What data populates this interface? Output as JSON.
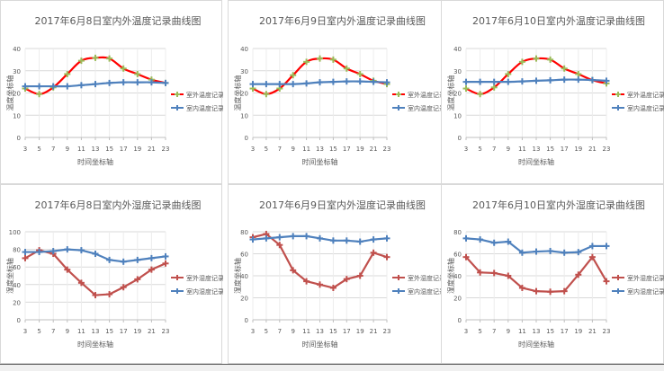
{
  "chart_data": [
    {
      "type": "line",
      "title": "2017年6月8日室内外温度记录曲线图",
      "xlabel": "时间坐标轴",
      "ylabel": "温度坐标轴",
      "x": [
        3,
        5,
        7,
        9,
        11,
        13,
        15,
        17,
        19,
        21,
        23
      ],
      "ylim": [
        0,
        40
      ],
      "yticks": [
        0,
        10,
        20,
        30,
        40
      ],
      "grid": true,
      "legend": "right",
      "smooth": true,
      "series": [
        {
          "name": "室外温度记录曲线",
          "color": "#ff0000",
          "marker_color": "#9bbb59",
          "values": [
            22,
            19.5,
            22.5,
            28.5,
            34.5,
            35.8,
            35.5,
            31,
            28.5,
            26,
            24.5
          ]
        },
        {
          "name": "室内温度记录曲线",
          "color": "#4f81bd",
          "marker_color": "#4f81bd",
          "values": [
            23,
            23,
            23,
            23,
            23.5,
            24,
            24.5,
            24.8,
            24.8,
            24.8,
            24.5
          ]
        }
      ]
    },
    {
      "type": "line",
      "title": "2017年6月9日室内外温度记录曲线图",
      "xlabel": "时间坐标轴",
      "ylabel": "温度坐标轴",
      "x": [
        3,
        5,
        7,
        9,
        11,
        13,
        15,
        17,
        19,
        21,
        23
      ],
      "ylim": [
        0,
        40
      ],
      "yticks": [
        0,
        10,
        20,
        30,
        40
      ],
      "grid": true,
      "legend": "right",
      "smooth": true,
      "series": [
        {
          "name": "室外温度记录曲线",
          "color": "#ff0000",
          "marker_color": "#9bbb59",
          "values": [
            22,
            19.5,
            22,
            28,
            34,
            35.5,
            35,
            31,
            28.5,
            25.5,
            24
          ]
        },
        {
          "name": "室内温度记录曲线",
          "color": "#4f81bd",
          "marker_color": "#4f81bd",
          "values": [
            24,
            24,
            24,
            24,
            24.3,
            24.8,
            25,
            25.2,
            25.2,
            25,
            24.8
          ]
        }
      ]
    },
    {
      "type": "line",
      "title": "2017年6月10日室内外温度记录曲线图",
      "xlabel": "时间坐标轴",
      "ylabel": "温度坐标轴",
      "x": [
        3,
        5,
        7,
        9,
        11,
        13,
        15,
        17,
        19,
        21,
        23
      ],
      "ylim": [
        0,
        40
      ],
      "yticks": [
        0,
        10,
        20,
        30,
        40
      ],
      "grid": true,
      "legend": "right",
      "smooth": true,
      "series": [
        {
          "name": "室外温度记录曲线",
          "color": "#ff0000",
          "marker_color": "#9bbb59",
          "values": [
            22,
            19.5,
            22.5,
            28.5,
            34,
            35.5,
            35,
            31,
            28.5,
            25.8,
            24.3
          ]
        },
        {
          "name": "室内温度记录曲线",
          "color": "#4f81bd",
          "marker_color": "#4f81bd",
          "values": [
            25,
            25,
            25,
            25,
            25.2,
            25.5,
            25.7,
            26,
            26,
            25.8,
            25.5
          ]
        }
      ]
    },
    {
      "type": "line",
      "title": "2017年6月8日室内外湿度记录曲线图",
      "xlabel": "时间坐标轴",
      "ylabel": "湿度坐标轴",
      "x": [
        3,
        5,
        7,
        9,
        11,
        13,
        15,
        17,
        19,
        21,
        23
      ],
      "ylim": [
        0,
        100
      ],
      "yticks": [
        0,
        20,
        40,
        60,
        80,
        100
      ],
      "grid": true,
      "legend": "right",
      "smooth": false,
      "series": [
        {
          "name": "室外湿度记录曲线",
          "color": "#c0504d",
          "marker_color": "#c0504d",
          "values": [
            70,
            79,
            75,
            57,
            42,
            28,
            29,
            37,
            46,
            57,
            64
          ]
        },
        {
          "name": "室内湿度记录曲线",
          "color": "#4f81bd",
          "marker_color": "#4f81bd",
          "values": [
            77,
            77,
            78,
            80,
            79,
            75,
            68,
            66,
            68,
            70,
            72
          ]
        }
      ]
    },
    {
      "type": "line",
      "title": "2017年6月9日室内外湿度记录曲线图",
      "xlabel": "时间坐标轴",
      "ylabel": "湿度坐标轴",
      "x": [
        3,
        5,
        7,
        9,
        11,
        13,
        15,
        17,
        19,
        21,
        23
      ],
      "ylim": [
        0,
        80
      ],
      "yticks": [
        0,
        20,
        40,
        60,
        80
      ],
      "grid": true,
      "legend": "right",
      "smooth": false,
      "series": [
        {
          "name": "室外湿度记录曲线",
          "color": "#c0504d",
          "marker_color": "#c0504d",
          "values": [
            75,
            78,
            68,
            45,
            35,
            32,
            29,
            37,
            40,
            61,
            57
          ]
        },
        {
          "name": "室内湿度记录曲线",
          "color": "#4f81bd",
          "marker_color": "#4f81bd",
          "values": [
            73,
            74,
            75,
            76,
            76,
            74,
            72,
            72,
            71,
            73,
            74
          ]
        }
      ]
    },
    {
      "type": "line",
      "title": "2017年6月10日室内外湿度记录曲线图",
      "xlabel": "时间坐标轴",
      "ylabel": "湿度坐标轴",
      "x": [
        3,
        5,
        7,
        9,
        11,
        13,
        15,
        17,
        19,
        21,
        23
      ],
      "ylim": [
        0,
        80
      ],
      "yticks": [
        0,
        20,
        40,
        60,
        80
      ],
      "grid": true,
      "legend": "right",
      "smooth": false,
      "series": [
        {
          "name": "室外湿度记录曲线",
          "color": "#c0504d",
          "marker_color": "#c0504d",
          "values": [
            57,
            43,
            42.5,
            40,
            29,
            26,
            25.5,
            26,
            41,
            57,
            35
          ]
        },
        {
          "name": "室内湿度记录曲线",
          "color": "#4f81bd",
          "marker_color": "#4f81bd",
          "values": [
            74,
            73,
            70,
            71,
            61,
            62,
            62.5,
            61,
            61.5,
            67,
            67
          ]
        }
      ]
    }
  ]
}
